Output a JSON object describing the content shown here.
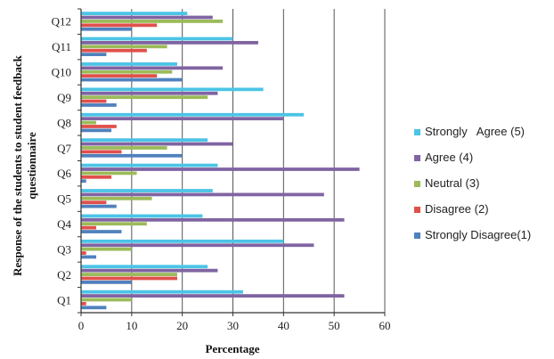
{
  "chart_data": {
    "type": "bar",
    "orientation": "horizontal",
    "title": "",
    "xlabel": "Percentage",
    "ylabel_lines": [
      "Response of the students to student feedback",
      "questionnaire"
    ],
    "xlim": [
      0,
      60
    ],
    "xticks": [
      0,
      10,
      20,
      30,
      40,
      50,
      60
    ],
    "grid": "vertical",
    "legend_position": "right",
    "categories": [
      "Q1",
      "Q2",
      "Q3",
      "Q4",
      "Q5",
      "Q6",
      "Q7",
      "Q8",
      "Q9",
      "Q10",
      "Q11",
      "Q12"
    ],
    "series": [
      {
        "name": "Strongly Disagree(1)",
        "color": "#4f81bd",
        "values": [
          5,
          10,
          3,
          8,
          7,
          1,
          20,
          6,
          7,
          20,
          5,
          10
        ]
      },
      {
        "name": "Disagree (2)",
        "color": "#e0504c",
        "values": [
          1,
          19,
          1,
          3,
          5,
          6,
          8,
          7,
          5,
          15,
          13,
          15
        ]
      },
      {
        "name": "Neutral (3)",
        "color": "#9bbb59",
        "values": [
          10,
          19,
          10,
          13,
          14,
          11,
          17,
          3,
          25,
          18,
          17,
          28
        ]
      },
      {
        "name": "Agree (4)",
        "color": "#8064a2",
        "values": [
          52,
          27,
          46,
          52,
          48,
          55,
          30,
          40,
          27,
          28,
          35,
          26
        ]
      },
      {
        "name": "Strongly   Agree (5)",
        "color": "#4bc4e6",
        "values": [
          32,
          25,
          40,
          24,
          26,
          27,
          25,
          44,
          36,
          19,
          30,
          21
        ]
      }
    ],
    "legend_order": [
      4,
      3,
      2,
      1,
      0
    ]
  }
}
